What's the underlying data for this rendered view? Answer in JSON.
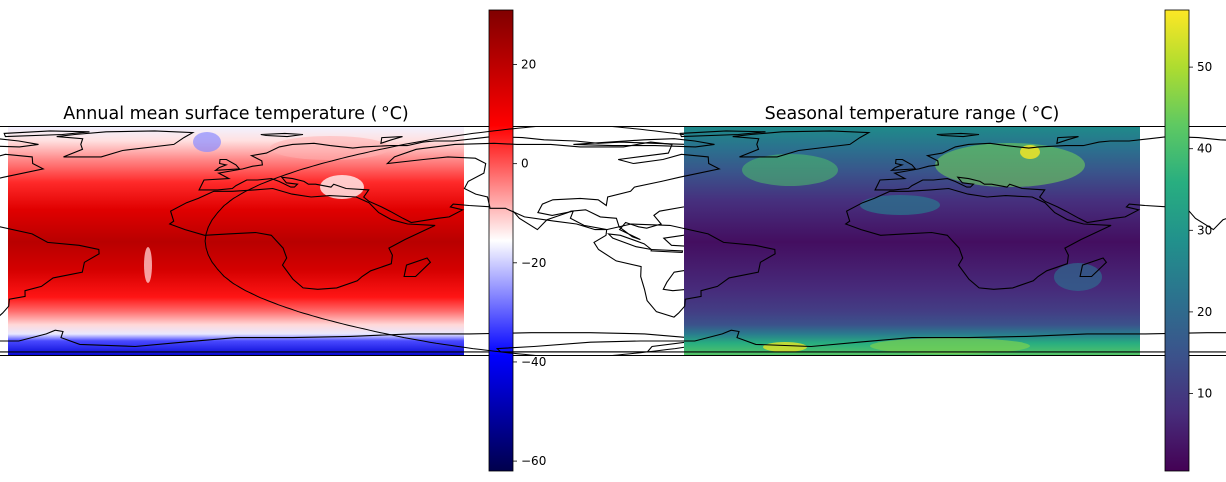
{
  "chart_data": [
    {
      "type": "heatmap",
      "title": "Annual mean surface temperature ( $^\\circ$C)",
      "title_display": "Annual mean surface temperature ( °C)",
      "projection": "Robinson",
      "colormap": "seismic",
      "colorbar": {
        "range": [
          -62,
          31
        ],
        "ticks": [
          20,
          0,
          -20,
          -40,
          -60
        ],
        "tick_labels": [
          "20",
          "0",
          "−20",
          "−40",
          "−60"
        ]
      },
      "features": [
        "coastlines"
      ],
      "field_summary": "Warmest (~28–30) in tropics, near 0 at high latitudes, coldest (~ −50 to −60) over Antarctica; Tibetan Plateau and Greenland near 0 or below"
    },
    {
      "type": "heatmap",
      "title": "Seasonal temperature range ( $^\\circ$C)",
      "title_display": "Seasonal temperature range ( °C)",
      "projection": "Robinson",
      "colormap": "viridis",
      "colorbar": {
        "range": [
          0.5,
          57
        ],
        "ticks": [
          50,
          40,
          30,
          20,
          10
        ],
        "tick_labels": [
          "50",
          "40",
          "30",
          "20",
          "10"
        ]
      },
      "features": [
        "coastlines"
      ],
      "field_summary": "Small range (~1–5) over tropical oceans, large (~35–55) over Siberia, northern Canada and Antarctica"
    }
  ]
}
